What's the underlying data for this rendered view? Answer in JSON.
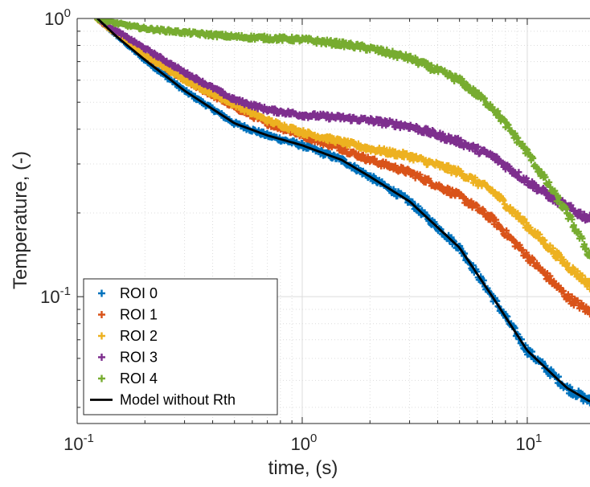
{
  "chart_data": {
    "type": "scatter",
    "title": "",
    "xlabel": "time, (s)",
    "ylabel": "Temperature, (-)",
    "xscale": "log",
    "yscale": "log",
    "xlim": [
      0.1,
      19
    ],
    "ylim": [
      0.035,
      1.0
    ],
    "grid": true,
    "minor_grid": true,
    "legend_position": "bottom-left",
    "x_ticks": [
      {
        "base": "10",
        "exp": "-1"
      },
      {
        "base": "10",
        "exp": "0"
      },
      {
        "base": "10",
        "exp": "1"
      }
    ],
    "x_tick_values": [
      0.1,
      1,
      10
    ],
    "y_ticks": [
      {
        "base": "10",
        "exp": "-1"
      },
      {
        "base": "10",
        "exp": "0"
      }
    ],
    "y_tick_values": [
      0.1,
      1
    ],
    "x": [
      0.123,
      0.15,
      0.2,
      0.3,
      0.5,
      0.7,
      1.0,
      1.5,
      2.0,
      3.0,
      5.0,
      7.0,
      10.0,
      15.0,
      19.0
    ],
    "series": [
      {
        "name": "ROI 0",
        "marker": "plus",
        "color": "#0072BD",
        "values": [
          1.0,
          0.87,
          0.71,
          0.55,
          0.42,
          0.38,
          0.35,
          0.31,
          0.27,
          0.22,
          0.15,
          0.1,
          0.064,
          0.047,
          0.042
        ]
      },
      {
        "name": "ROI 1",
        "marker": "plus",
        "color": "#D95319",
        "values": [
          1.0,
          0.88,
          0.74,
          0.6,
          0.48,
          0.42,
          0.38,
          0.34,
          0.31,
          0.28,
          0.23,
          0.19,
          0.14,
          0.1,
          0.088
        ]
      },
      {
        "name": "ROI 2",
        "marker": "plus",
        "color": "#EDB120",
        "values": [
          1.0,
          0.88,
          0.74,
          0.6,
          0.49,
          0.43,
          0.39,
          0.36,
          0.34,
          0.32,
          0.28,
          0.24,
          0.18,
          0.13,
          0.11
        ]
      },
      {
        "name": "ROI 3",
        "marker": "plus",
        "color": "#7E2F8E",
        "values": [
          1.0,
          0.9,
          0.78,
          0.64,
          0.51,
          0.47,
          0.45,
          0.44,
          0.43,
          0.41,
          0.36,
          0.32,
          0.26,
          0.21,
          0.19
        ]
      },
      {
        "name": "ROI 4",
        "marker": "plus",
        "color": "#77AC30",
        "values": [
          1.0,
          0.96,
          0.92,
          0.89,
          0.86,
          0.85,
          0.84,
          0.81,
          0.78,
          0.72,
          0.6,
          0.48,
          0.33,
          0.2,
          0.14
        ]
      },
      {
        "name": "Model without Rth",
        "marker": "line",
        "color": "#000000",
        "values": [
          1.0,
          0.86,
          0.71,
          0.55,
          0.42,
          0.38,
          0.35,
          0.31,
          0.27,
          0.22,
          0.15,
          0.1,
          0.064,
          0.047,
          0.042
        ]
      }
    ]
  }
}
